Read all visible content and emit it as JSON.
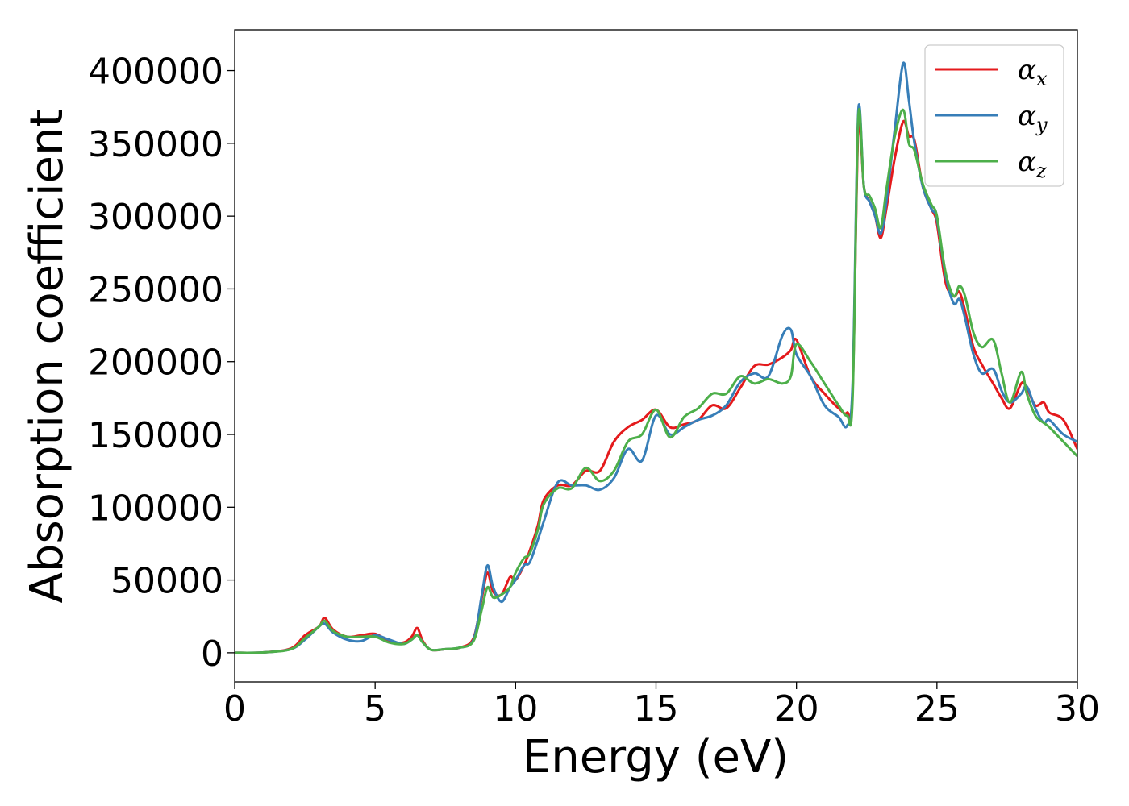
{
  "chart_data": {
    "type": "line",
    "xlabel": "Energy (eV)",
    "ylabel": "Absorption coefficient",
    "xlim": [
      0,
      30
    ],
    "ylim": [
      -20000,
      428000
    ],
    "xticks": [
      0,
      5,
      10,
      15,
      20,
      25,
      30
    ],
    "yticks": [
      0,
      50000,
      100000,
      150000,
      200000,
      250000,
      300000,
      350000,
      400000
    ],
    "grid": false,
    "legend_position": "top-right",
    "series": [
      {
        "name": "α",
        "subscript": "x",
        "color": "#e41a1c",
        "x": [
          0,
          1,
          2,
          2.5,
          3,
          3.2,
          3.5,
          4,
          4.5,
          5,
          5.5,
          6,
          6.3,
          6.5,
          6.7,
          7,
          7.5,
          8,
          8.5,
          8.8,
          9,
          9.2,
          9.5,
          9.8,
          10,
          10.3,
          10.5,
          10.8,
          11,
          11.5,
          12,
          12.5,
          13,
          13.5,
          14,
          14.5,
          15,
          15.5,
          16,
          16.5,
          17,
          17.5,
          18,
          18.5,
          19,
          19.5,
          19.8,
          20,
          20.5,
          21,
          21.5,
          21.8,
          22,
          22.2,
          22.4,
          22.6,
          22.8,
          23,
          23.2,
          23.5,
          23.8,
          24,
          24.2,
          24.5,
          24.8,
          25,
          25.3,
          25.6,
          25.8,
          26,
          26.3,
          26.6,
          27,
          27.3,
          27.6,
          28,
          28.2,
          28.5,
          28.8,
          29,
          29.5,
          30
        ],
        "y": [
          0,
          200,
          3000,
          12000,
          18000,
          24000,
          16000,
          11000,
          12000,
          13000,
          8000,
          7000,
          11000,
          17000,
          8000,
          2000,
          2500,
          3500,
          10000,
          38000,
          55000,
          42000,
          40000,
          52000,
          50000,
          60000,
          70000,
          88000,
          105000,
          115000,
          115000,
          125000,
          125000,
          145000,
          155000,
          160000,
          167000,
          155000,
          157000,
          160000,
          170000,
          168000,
          182000,
          197000,
          198000,
          203000,
          208000,
          215000,
          190000,
          178000,
          168000,
          165000,
          180000,
          360000,
          320000,
          310000,
          300000,
          285000,
          305000,
          340000,
          365000,
          355000,
          352000,
          320000,
          305000,
          295000,
          255000,
          245000,
          248000,
          235000,
          210000,
          198000,
          185000,
          175000,
          168000,
          185000,
          182000,
          170000,
          172000,
          165000,
          160000,
          140000
        ]
      },
      {
        "name": "α",
        "subscript": "y",
        "color": "#377eb8",
        "x": [
          0,
          1,
          2,
          2.5,
          3,
          3.2,
          3.5,
          4,
          4.5,
          5,
          5.5,
          6,
          6.3,
          6.5,
          6.7,
          7,
          7.5,
          8,
          8.5,
          8.8,
          9,
          9.2,
          9.5,
          9.8,
          10,
          10.3,
          10.5,
          10.8,
          11,
          11.5,
          12,
          12.5,
          13,
          13.5,
          14,
          14.5,
          15,
          15.5,
          16,
          16.5,
          17,
          17.5,
          18,
          18.5,
          19,
          19.5,
          19.8,
          20,
          20.5,
          21,
          21.5,
          21.8,
          22,
          22.2,
          22.4,
          22.6,
          22.8,
          23,
          23.2,
          23.5,
          23.8,
          24,
          24.2,
          24.5,
          24.8,
          25,
          25.3,
          25.6,
          25.8,
          26,
          26.3,
          26.6,
          27,
          27.3,
          27.6,
          28,
          28.2,
          28.5,
          28.8,
          29,
          29.5,
          30
        ],
        "y": [
          0,
          200,
          2500,
          9000,
          18000,
          20000,
          14000,
          9000,
          8000,
          12000,
          9000,
          6000,
          9000,
          12000,
          7000,
          2000,
          2500,
          3500,
          9000,
          40000,
          60000,
          45000,
          35000,
          45000,
          50000,
          60000,
          62000,
          78000,
          90000,
          117000,
          115000,
          115000,
          112000,
          120000,
          140000,
          132000,
          163000,
          150000,
          155000,
          160000,
          163000,
          170000,
          186000,
          192000,
          190000,
          218000,
          222000,
          205000,
          190000,
          170000,
          162000,
          156000,
          185000,
          372000,
          320000,
          310000,
          300000,
          288000,
          310000,
          360000,
          405000,
          380000,
          350000,
          320000,
          305000,
          298000,
          260000,
          240000,
          243000,
          230000,
          205000,
          192000,
          195000,
          180000,
          172000,
          178000,
          183000,
          168000,
          158000,
          160000,
          150000,
          145000
        ]
      },
      {
        "name": "α",
        "subscript": "z",
        "color": "#4daf4a",
        "x": [
          0,
          1,
          2,
          2.5,
          3,
          3.2,
          3.5,
          4,
          4.5,
          5,
          5.5,
          6,
          6.3,
          6.5,
          6.7,
          7,
          7.5,
          8,
          8.5,
          8.8,
          9,
          9.2,
          9.5,
          9.8,
          10,
          10.3,
          10.5,
          10.8,
          11,
          11.5,
          12,
          12.5,
          13,
          13.5,
          14,
          14.5,
          15,
          15.5,
          16,
          16.5,
          17,
          17.5,
          18,
          18.5,
          19,
          19.5,
          19.8,
          20,
          20.5,
          21,
          21.5,
          21.8,
          22,
          22.2,
          22.4,
          22.6,
          22.8,
          23,
          23.2,
          23.5,
          23.8,
          24,
          24.2,
          24.5,
          24.8,
          25,
          25.3,
          25.6,
          25.8,
          26,
          26.3,
          26.6,
          27,
          27.3,
          27.6,
          28,
          28.2,
          28.5,
          28.8,
          29,
          29.5,
          30
        ],
        "y": [
          0,
          200,
          2500,
          10000,
          18000,
          22000,
          15000,
          11000,
          11000,
          11000,
          7000,
          6000,
          9000,
          12000,
          7000,
          2000,
          2500,
          3500,
          8000,
          30000,
          45000,
          38000,
          40000,
          45000,
          55000,
          65000,
          68000,
          85000,
          102000,
          113000,
          113000,
          127000,
          118000,
          125000,
          145000,
          150000,
          167000,
          148000,
          162000,
          168000,
          178000,
          178000,
          190000,
          185000,
          188000,
          185000,
          190000,
          212000,
          200000,
          185000,
          170000,
          163000,
          175000,
          368000,
          320000,
          314000,
          305000,
          292000,
          318000,
          355000,
          373000,
          350000,
          345000,
          322000,
          308000,
          300000,
          262000,
          245000,
          252000,
          245000,
          220000,
          210000,
          215000,
          192000,
          172000,
          193000,
          178000,
          163000,
          158000,
          155000,
          145000,
          135000
        ]
      }
    ]
  }
}
